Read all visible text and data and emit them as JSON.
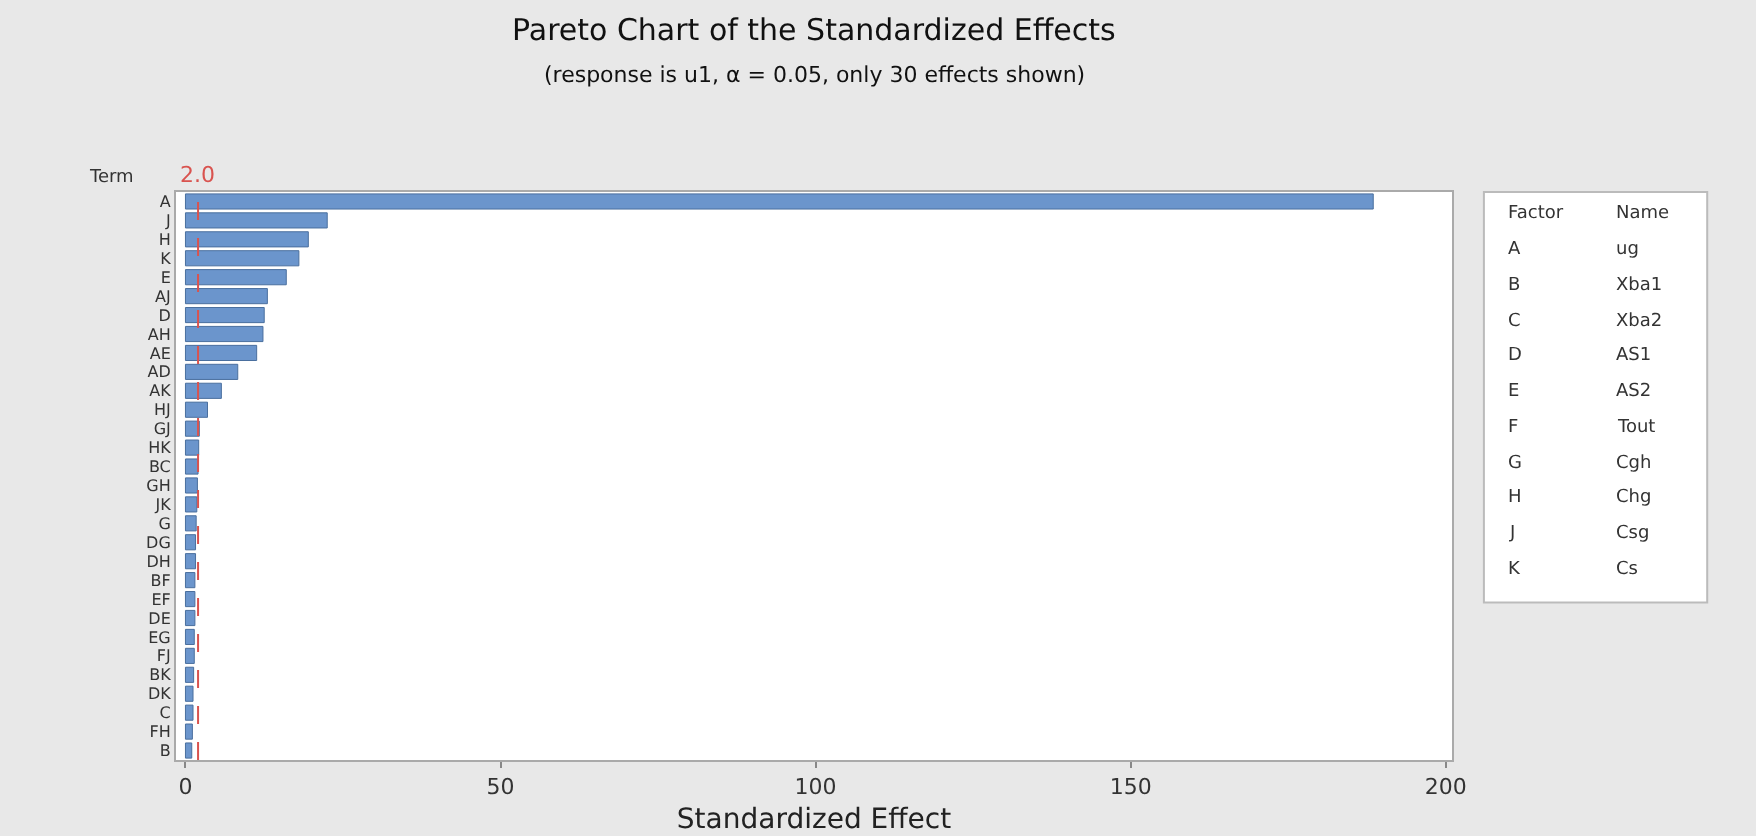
{
  "chart_data": {
    "type": "bar",
    "orientation": "horizontal",
    "title": "Pareto Chart of the Standardized Effects",
    "subtitle": "(response is u1, α = 0.05, only 30 effects shown)",
    "xlabel": "Standardized Effect",
    "ylabel": "Term",
    "categories": [
      "A",
      "J",
      "H",
      "K",
      "E",
      "AJ",
      "D",
      "AH",
      "AE",
      "AD",
      "AK",
      "HJ",
      "GJ",
      "HK",
      "BC",
      "GH",
      "JK",
      "G",
      "DG",
      "DH",
      "BF",
      "EF",
      "DE",
      "EG",
      "FJ",
      "BK",
      "DK",
      "C",
      "FH",
      "B"
    ],
    "values": [
      188.5,
      22.5,
      19.5,
      18,
      16,
      13,
      12.5,
      12.3,
      11.3,
      8.3,
      5.7,
      3.5,
      2.2,
      2.1,
      2,
      1.9,
      1.8,
      1.7,
      1.6,
      1.6,
      1.5,
      1.5,
      1.5,
      1.4,
      1.4,
      1.3,
      1.2,
      1.2,
      1.1,
      1
    ],
    "color": "#6b95cc",
    "xlim": [
      -1.5,
      201
    ],
    "xticks": [
      0,
      50,
      100,
      150,
      200
    ],
    "grid": false,
    "ref_lines": [
      {
        "axis": "x",
        "value": 2,
        "label": "2.0",
        "color": "#d9534f",
        "line_style": "dashed"
      }
    ],
    "annotations": [
      "Factor",
      "Name",
      "A",
      "ug",
      "B",
      "Xba1",
      "C",
      "Xba2",
      "D",
      "AS1",
      "E",
      "AS2",
      "F",
      "Tout",
      "G",
      "Cgh",
      "H",
      "Chg",
      "J",
      "Csg",
      "K",
      "Cs"
    ]
  }
}
